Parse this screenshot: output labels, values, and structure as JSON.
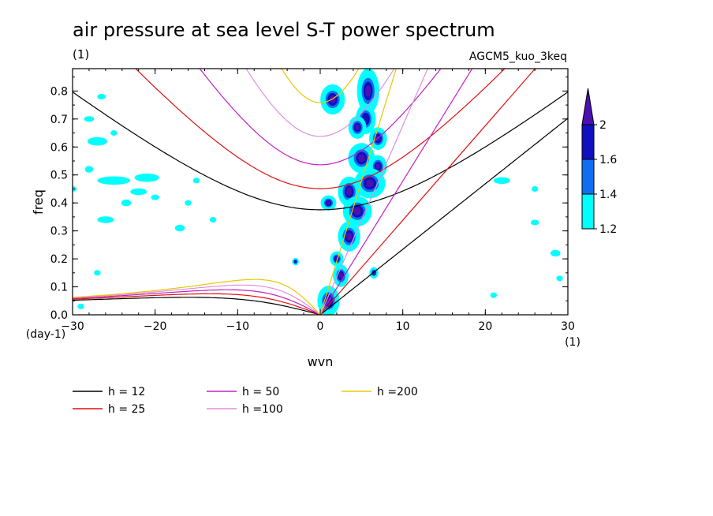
{
  "title": "air pressure at sea level S-T power spectrum",
  "units_label": "(1)",
  "model_label": "AGCM5_kuo_3keq",
  "chart_data": {
    "type": "heatmap",
    "xlabel": "wvn",
    "ylabel": "freq",
    "x_unit_label": "(1)",
    "y_unit_label": "(day-1)",
    "xlim": [
      -30,
      30
    ],
    "ylim": [
      0,
      0.88
    ],
    "xticks": [
      -30,
      -20,
      -10,
      0,
      10,
      20,
      30
    ],
    "yticks": [
      0.0,
      0.1,
      0.2,
      0.3,
      0.4,
      0.5,
      0.6,
      0.7,
      0.8
    ],
    "colorbar": {
      "levels": [
        1.2,
        1.4,
        1.6,
        2
      ],
      "level_labels": [
        "1.2",
        "1.4",
        "1.6",
        "2"
      ],
      "colors": [
        "#00ffff",
        "#0f6ff0",
        "#1010c0",
        "#4a10b0"
      ]
    },
    "dispersion_curves": [
      {
        "label": "h = 12",
        "h": 12,
        "color": "#000000"
      },
      {
        "label": "h = 25",
        "h": 25,
        "color": "#e01010"
      },
      {
        "label": "h = 50",
        "h": 50,
        "color": "#c020c0"
      },
      {
        "label": "h =100",
        "h": 100,
        "color": "#e090e0"
      },
      {
        "label": "h =200",
        "h": 200,
        "color": "#e8c800"
      }
    ],
    "contour_blobs": [
      {
        "x": 5.8,
        "y": 0.8,
        "rx": 1.0,
        "ry": 0.06,
        "level": 3
      },
      {
        "x": 5.5,
        "y": 0.7,
        "rx": 0.9,
        "ry": 0.04,
        "level": 2
      },
      {
        "x": 1.5,
        "y": 0.77,
        "rx": 1.1,
        "ry": 0.04,
        "level": 3
      },
      {
        "x": 4.5,
        "y": 0.67,
        "rx": 0.8,
        "ry": 0.03,
        "level": 3
      },
      {
        "x": 7.0,
        "y": 0.63,
        "rx": 0.8,
        "ry": 0.03,
        "level": 3
      },
      {
        "x": 5.0,
        "y": 0.56,
        "rx": 1.2,
        "ry": 0.04,
        "level": 3
      },
      {
        "x": 7.0,
        "y": 0.53,
        "rx": 0.8,
        "ry": 0.03,
        "level": 3
      },
      {
        "x": 6.0,
        "y": 0.47,
        "rx": 1.4,
        "ry": 0.04,
        "level": 3
      },
      {
        "x": 3.5,
        "y": 0.44,
        "rx": 1.0,
        "ry": 0.04,
        "level": 3
      },
      {
        "x": 1.0,
        "y": 0.4,
        "rx": 0.7,
        "ry": 0.02,
        "level": 3
      },
      {
        "x": 4.5,
        "y": 0.37,
        "rx": 1.3,
        "ry": 0.04,
        "level": 3
      },
      {
        "x": 3.5,
        "y": 0.28,
        "rx": 1.0,
        "ry": 0.04,
        "level": 3
      },
      {
        "x": 2.0,
        "y": 0.2,
        "rx": 0.6,
        "ry": 0.02,
        "level": 3
      },
      {
        "x": 2.5,
        "y": 0.14,
        "rx": 0.7,
        "ry": 0.03,
        "level": 3
      },
      {
        "x": 1.0,
        "y": 0.05,
        "rx": 1.0,
        "ry": 0.04,
        "level": 3
      },
      {
        "x": 6.5,
        "y": 0.15,
        "rx": 0.4,
        "ry": 0.015,
        "level": 3
      },
      {
        "x": -3.0,
        "y": 0.19,
        "rx": 0.3,
        "ry": 0.01,
        "level": 2
      },
      {
        "x": -28.0,
        "y": 0.7,
        "rx": 0.6,
        "ry": 0.01,
        "level": 0
      },
      {
        "x": -27.0,
        "y": 0.62,
        "rx": 1.2,
        "ry": 0.015,
        "level": 0
      },
      {
        "x": -25.0,
        "y": 0.65,
        "rx": 0.4,
        "ry": 0.01,
        "level": 0
      },
      {
        "x": -26.5,
        "y": 0.78,
        "rx": 0.5,
        "ry": 0.01,
        "level": 0
      },
      {
        "x": -25.0,
        "y": 0.48,
        "rx": 2.0,
        "ry": 0.015,
        "level": 0
      },
      {
        "x": -21.0,
        "y": 0.49,
        "rx": 1.5,
        "ry": 0.015,
        "level": 0
      },
      {
        "x": -22.0,
        "y": 0.44,
        "rx": 1.0,
        "ry": 0.012,
        "level": 0
      },
      {
        "x": -28.0,
        "y": 0.52,
        "rx": 0.5,
        "ry": 0.012,
        "level": 0
      },
      {
        "x": -23.5,
        "y": 0.4,
        "rx": 0.6,
        "ry": 0.012,
        "level": 0
      },
      {
        "x": -26.0,
        "y": 0.34,
        "rx": 1.0,
        "ry": 0.012,
        "level": 0
      },
      {
        "x": -20.0,
        "y": 0.42,
        "rx": 0.5,
        "ry": 0.01,
        "level": 0
      },
      {
        "x": -15.0,
        "y": 0.48,
        "rx": 0.4,
        "ry": 0.01,
        "level": 0
      },
      {
        "x": -16.0,
        "y": 0.4,
        "rx": 0.4,
        "ry": 0.01,
        "level": 0
      },
      {
        "x": -17.0,
        "y": 0.31,
        "rx": 0.6,
        "ry": 0.012,
        "level": 0
      },
      {
        "x": -27.0,
        "y": 0.15,
        "rx": 0.4,
        "ry": 0.01,
        "level": 0
      },
      {
        "x": -29.0,
        "y": 0.03,
        "rx": 0.4,
        "ry": 0.01,
        "level": 0
      },
      {
        "x": -30.0,
        "y": 0.45,
        "rx": 0.5,
        "ry": 0.01,
        "level": 0
      },
      {
        "x": 22.0,
        "y": 0.48,
        "rx": 1.0,
        "ry": 0.012,
        "level": 0
      },
      {
        "x": 28.5,
        "y": 0.22,
        "rx": 0.6,
        "ry": 0.012,
        "level": 0
      },
      {
        "x": 26.0,
        "y": 0.45,
        "rx": 0.4,
        "ry": 0.01,
        "level": 0
      },
      {
        "x": 29.0,
        "y": 0.13,
        "rx": 0.4,
        "ry": 0.01,
        "level": 0
      },
      {
        "x": 26.0,
        "y": 0.33,
        "rx": 0.5,
        "ry": 0.01,
        "level": 0
      },
      {
        "x": 21.0,
        "y": 0.07,
        "rx": 0.4,
        "ry": 0.01,
        "level": 0
      },
      {
        "x": -13.0,
        "y": 0.34,
        "rx": 0.4,
        "ry": 0.01,
        "level": 0
      }
    ]
  }
}
